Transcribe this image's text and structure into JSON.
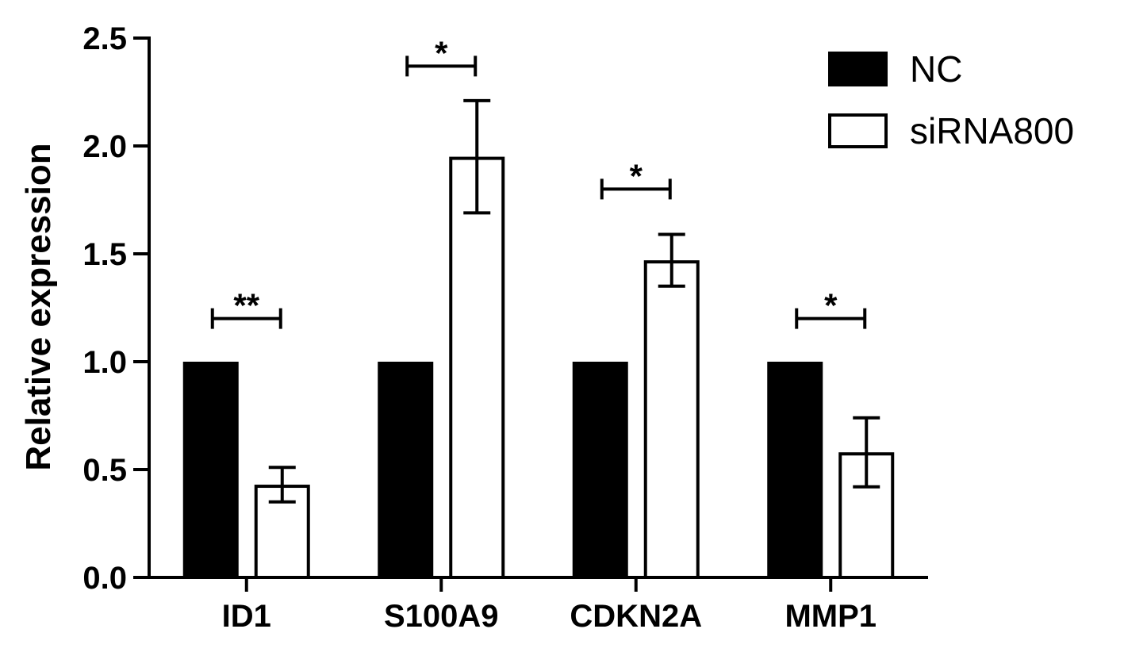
{
  "chart_data": {
    "type": "bar",
    "ylabel": "Relative expression",
    "ylim": [
      0,
      2.5
    ],
    "yticks": [
      "0.0",
      "0.5",
      "1.0",
      "1.5",
      "2.0",
      "2.5"
    ],
    "categories": [
      "ID1",
      "S100A9",
      "CDKN2A",
      "MMP1"
    ],
    "series": [
      {
        "name": "NC",
        "values": [
          1.0,
          1.0,
          1.0,
          1.0
        ],
        "errors": [
          0,
          0,
          0,
          0
        ],
        "fill": "#000000"
      },
      {
        "name": "siRNA800",
        "values": [
          0.43,
          1.95,
          1.47,
          0.58
        ],
        "errors": [
          0.08,
          0.26,
          0.12,
          0.16
        ],
        "fill": "#ffffff"
      }
    ],
    "significance": [
      {
        "category": "ID1",
        "label": "**",
        "y": 1.2
      },
      {
        "category": "S100A9",
        "label": "*",
        "y": 2.37
      },
      {
        "category": "CDKN2A",
        "label": "*",
        "y": 1.8
      },
      {
        "category": "MMP1",
        "label": "*",
        "y": 1.2
      }
    ],
    "legend_position": "top-right",
    "grid": false
  }
}
